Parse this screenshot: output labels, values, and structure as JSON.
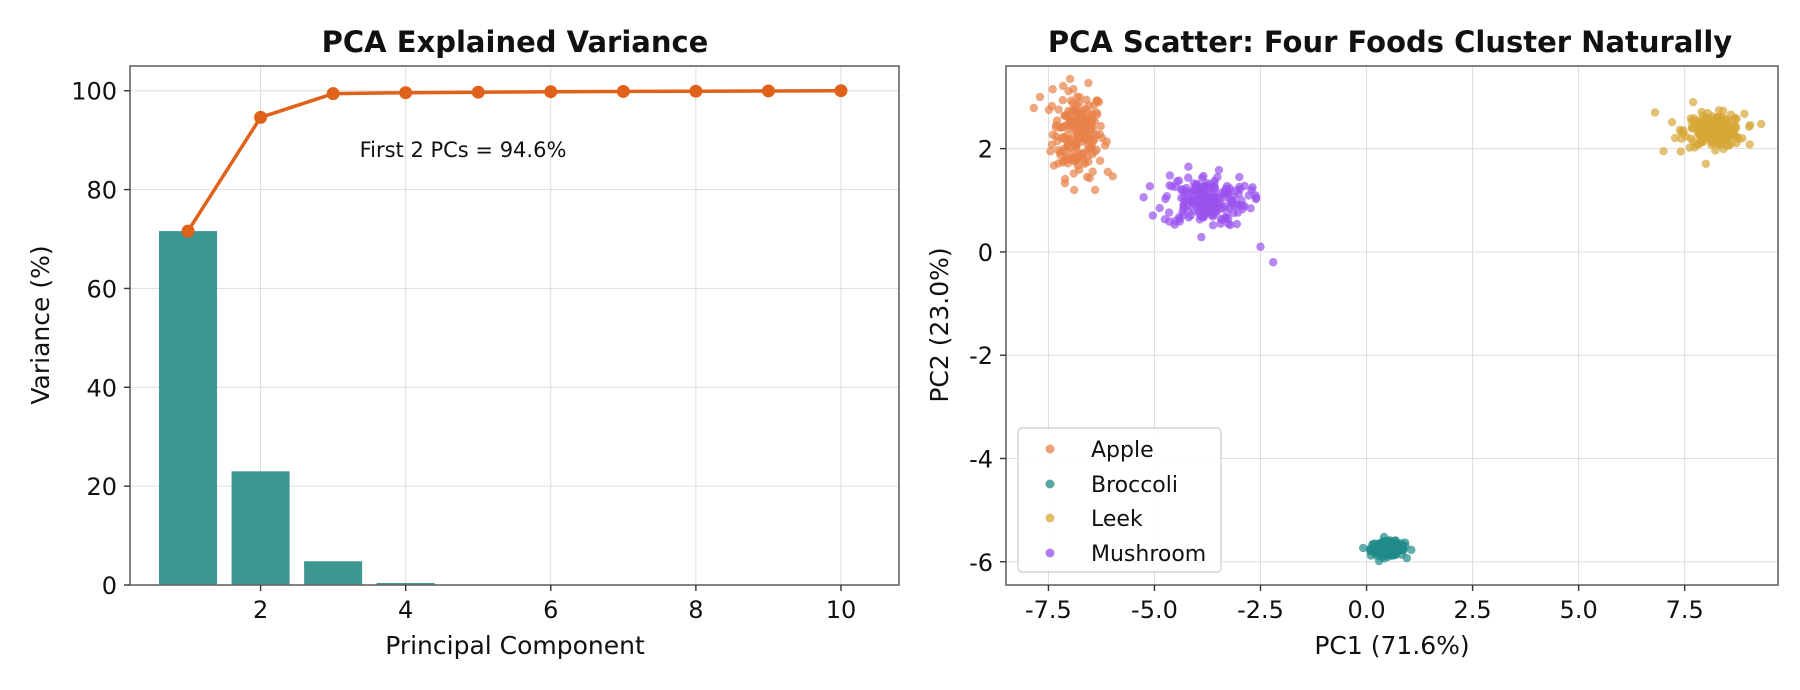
{
  "chart_data": [
    {
      "type": "bar",
      "title": "PCA Explained Variance",
      "xlabel": "Principal Component",
      "ylabel": "Variance (%)",
      "xlim": [
        0.2,
        10.8
      ],
      "ylim": [
        0,
        105
      ],
      "xticks": [
        2,
        4,
        6,
        8,
        10
      ],
      "yticks": [
        0,
        20,
        40,
        60,
        80,
        100
      ],
      "grid": true,
      "categories": [
        1,
        2,
        3,
        4,
        5,
        6,
        7,
        8,
        9,
        10
      ],
      "series": [
        {
          "kind": "bar",
          "color": "#3d9692",
          "values": [
            71.6,
            23.0,
            4.8,
            0.4,
            0.1,
            0.05,
            0.02,
            0.01,
            0.01,
            0.01
          ]
        },
        {
          "kind": "line",
          "color": "#e0621a",
          "values": [
            71.6,
            94.6,
            99.4,
            99.6,
            99.7,
            99.8,
            99.85,
            99.9,
            99.95,
            100.0
          ]
        }
      ],
      "annotation": {
        "text": "First 2 PCs = 94.6%",
        "x": 4.4,
        "y": 88,
        "color": "#e0621a"
      }
    },
    {
      "type": "scatter",
      "title": "PCA Scatter: Four Foods Cluster Naturally",
      "xlabel": "PC1 (71.6%)",
      "ylabel": "PC2 (23.0%)",
      "xlim": [
        -8.5,
        9.7
      ],
      "ylim": [
        -6.45,
        3.6
      ],
      "xticks": [
        -7.5,
        -5.0,
        -2.5,
        0.0,
        2.5,
        5.0,
        7.5
      ],
      "xtick_labels": [
        "-7.5",
        "-5.0",
        "-2.5",
        "0.0",
        "2.5",
        "5.0",
        "7.5"
      ],
      "yticks": [
        -6,
        -4,
        -2,
        0,
        2
      ],
      "grid": true,
      "legend_position": "lower-left",
      "series": [
        {
          "name": "Apple",
          "color": "#e8824a",
          "center": [
            -6.8,
            2.3
          ],
          "spread": [
            0.3,
            0.42
          ],
          "outliers": [
            [
              -7.7,
              3.0
            ],
            [
              -7.4,
              3.15
            ],
            [
              -6.4,
              1.2
            ],
            [
              -6.1,
              1.55
            ]
          ]
        },
        {
          "name": "Broccoli",
          "color": "#1f8a87",
          "center": [
            0.5,
            -5.75
          ],
          "spread": [
            0.2,
            0.07
          ],
          "outliers": []
        },
        {
          "name": "Leek",
          "color": "#d6a736",
          "center": [
            8.2,
            2.35
          ],
          "spread": [
            0.35,
            0.16
          ],
          "outliers": [
            [
              6.8,
              2.7
            ],
            [
              7.0,
              1.95
            ],
            [
              7.7,
              2.9
            ]
          ]
        },
        {
          "name": "Mushroom",
          "color": "#9a52ee",
          "center": [
            -3.8,
            1.0
          ],
          "spread": [
            0.5,
            0.25
          ],
          "outliers": [
            [
              -2.5,
              0.1
            ],
            [
              -2.2,
              -0.2
            ],
            [
              -2.6,
              1.05
            ],
            [
              -4.2,
              1.65
            ]
          ]
        }
      ]
    }
  ]
}
